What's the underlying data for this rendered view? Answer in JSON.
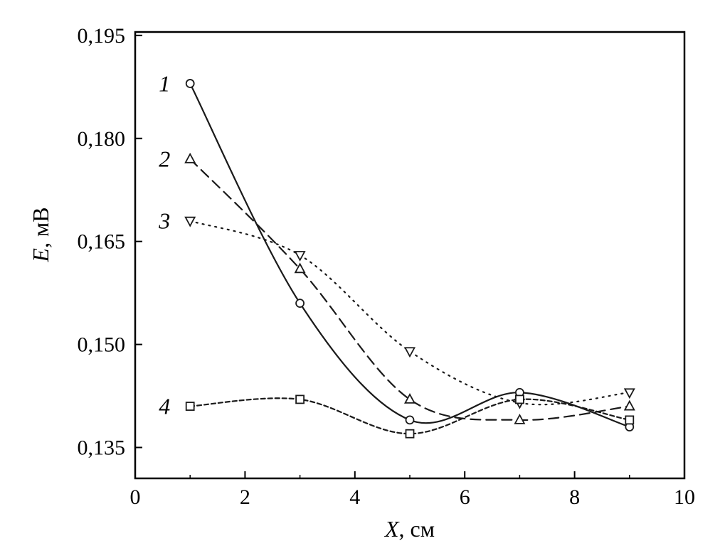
{
  "chart_data": {
    "type": "line",
    "title": "",
    "xlabel": {
      "var": "X",
      "unit": ", см"
    },
    "ylabel": {
      "var": "E",
      "unit": ", мВ"
    },
    "xlim": [
      0,
      10
    ],
    "ylim": [
      0.1305,
      0.1955
    ],
    "xticks": [
      "0",
      "2",
      "4",
      "6",
      "8",
      "10"
    ],
    "xtick_values": [
      0,
      2,
      4,
      6,
      8,
      10
    ],
    "yticks": [
      "0,135",
      "0,150",
      "0,165",
      "0,180",
      "0,195"
    ],
    "ytick_values": [
      0.135,
      0.15,
      0.165,
      0.18,
      0.195
    ],
    "grid": false,
    "x": [
      1,
      3,
      5,
      7,
      9
    ],
    "series": [
      {
        "name": "1",
        "marker": "circle",
        "line": "solid",
        "values": [
          0.188,
          0.156,
          0.139,
          0.143,
          0.138
        ]
      },
      {
        "name": "2",
        "marker": "triangle-up",
        "line": "dashed",
        "values": [
          0.177,
          0.161,
          0.142,
          0.139,
          0.141
        ]
      },
      {
        "name": "3",
        "marker": "triangle-down",
        "line": "dotted",
        "values": [
          0.168,
          0.163,
          0.149,
          0.1415,
          0.143
        ]
      },
      {
        "name": "4",
        "marker": "square",
        "line": "short-dash",
        "values": [
          0.141,
          0.142,
          0.137,
          0.142,
          0.139
        ]
      }
    ]
  }
}
